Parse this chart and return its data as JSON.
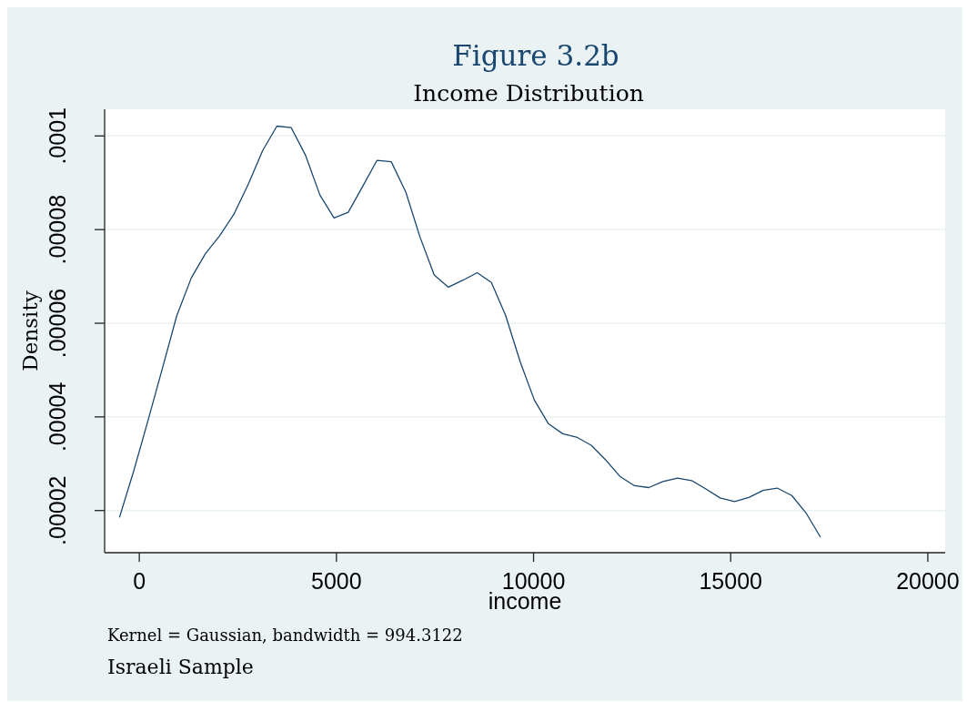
{
  "chart_data": {
    "type": "line",
    "title": "Figure 3.2b",
    "subtitle": "Income Distribution",
    "xlabel": "income",
    "ylabel": "Density",
    "annotations": [
      "Kernel = Gaussian, bandwidth = 994.3122",
      "Israeli Sample"
    ],
    "x": [
      -500,
      -140,
      230,
      590,
      950,
      1320,
      1680,
      2040,
      2400,
      2770,
      3130,
      3490,
      3850,
      4220,
      4580,
      4940,
      5300,
      5670,
      6030,
      6390,
      6760,
      7120,
      7480,
      7840,
      8210,
      8570,
      8930,
      9290,
      9660,
      10020,
      10380,
      10740,
      11110,
      11470,
      11830,
      12190,
      12560,
      12920,
      13280,
      13650,
      14010,
      14370,
      14730,
      15100,
      15460,
      15820,
      16180,
      16550,
      16910,
      17270
    ],
    "series": [
      {
        "color": "#1a476f",
        "values": [
          1.86e-05,
          2.85e-05,
          3.95e-05,
          5.05e-05,
          6.16e-05,
          6.97e-05,
          7.49e-05,
          7.87e-05,
          8.33e-05,
          8.98e-05,
          9.69e-05,
          0.0001021,
          0.0001018,
          9.58e-05,
          8.74e-05,
          8.25e-05,
          8.37e-05,
          8.93e-05,
          9.48e-05,
          9.45e-05,
          8.8e-05,
          7.84e-05,
          7.03e-05,
          6.77e-05,
          6.92e-05,
          7.08e-05,
          6.87e-05,
          6.17e-05,
          5.18e-05,
          4.36e-05,
          3.85e-05,
          3.64e-05,
          3.56e-05,
          3.39e-05,
          3.08e-05,
          2.73e-05,
          2.53e-05,
          2.49e-05,
          2.62e-05,
          2.69e-05,
          2.64e-05,
          2.46e-05,
          2.27e-05,
          2.19e-05,
          2.28e-05,
          2.43e-05,
          2.48e-05,
          2.32e-05,
          1.95e-05,
          1.44e-05
        ]
      }
    ],
    "xlim": [
      -880,
      20440
    ],
    "ylim": [
      1.1e-05,
      0.0001057
    ],
    "xticks": [
      0,
      5000,
      10000,
      15000,
      20000
    ],
    "yticks": [
      {
        "value": 2e-05,
        "label": ".00002"
      },
      {
        "value": 4e-05,
        "label": ".00004"
      },
      {
        "value": 6e-05,
        "label": ".00006"
      },
      {
        "value": 8e-05,
        "label": ".00008"
      },
      {
        "value": 0.0001,
        "label": ".0001"
      }
    ],
    "grid": "y"
  }
}
